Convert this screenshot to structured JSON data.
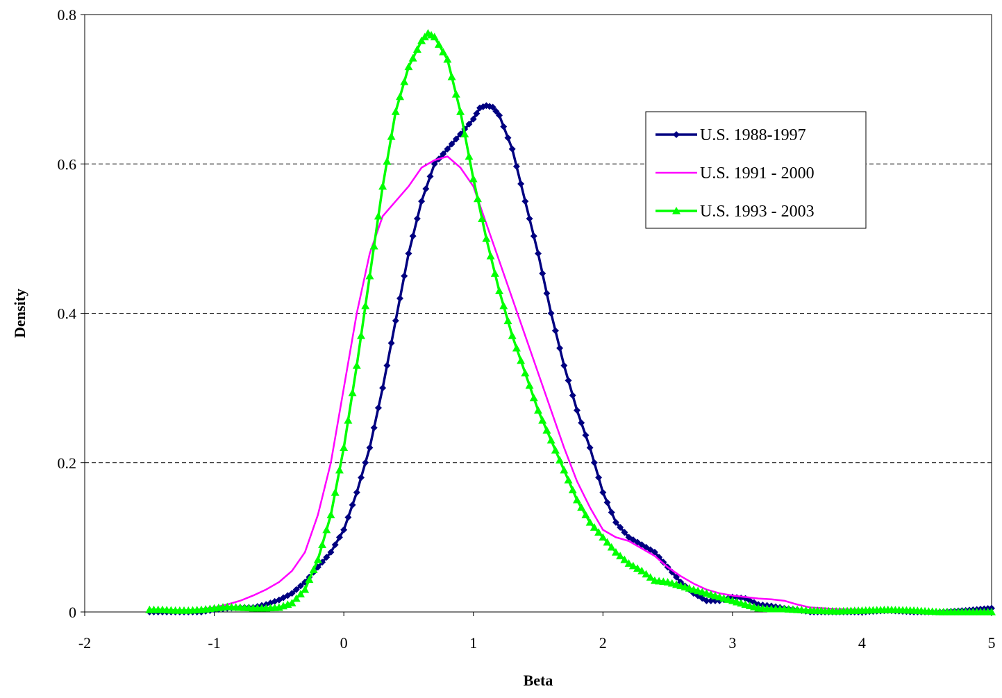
{
  "chart_data": {
    "type": "line",
    "title": "",
    "xlabel": "Beta",
    "ylabel": "Density",
    "xlim": [
      -2,
      5
    ],
    "ylim": [
      0,
      0.8
    ],
    "x_ticks": [
      "-2",
      "-1",
      "0",
      "1",
      "2",
      "3",
      "4",
      "5"
    ],
    "y_ticks": [
      "0",
      "0.2",
      "0.4",
      "0.6",
      "0.8"
    ],
    "grid": "horizontal dashed",
    "legend_position": "top-right",
    "series": [
      {
        "name": "U.S. 1988-1997",
        "color": "#000080",
        "marker": "diamond",
        "points": [
          [
            -1.5,
            0.0
          ],
          [
            -1.4,
            0.0
          ],
          [
            -1.3,
            0.0
          ],
          [
            -1.2,
            0.0
          ],
          [
            -1.1,
            0.0
          ],
          [
            -1.0,
            0.003
          ],
          [
            -0.9,
            0.005
          ],
          [
            -0.8,
            0.006
          ],
          [
            -0.7,
            0.006
          ],
          [
            -0.6,
            0.01
          ],
          [
            -0.5,
            0.016
          ],
          [
            -0.4,
            0.025
          ],
          [
            -0.3,
            0.04
          ],
          [
            -0.2,
            0.06
          ],
          [
            -0.1,
            0.08
          ],
          [
            0.0,
            0.11
          ],
          [
            0.1,
            0.16
          ],
          [
            0.2,
            0.22
          ],
          [
            0.3,
            0.3
          ],
          [
            0.4,
            0.39
          ],
          [
            0.5,
            0.48
          ],
          [
            0.6,
            0.55
          ],
          [
            0.7,
            0.6
          ],
          [
            0.8,
            0.62
          ],
          [
            0.9,
            0.64
          ],
          [
            1.0,
            0.66
          ],
          [
            1.05,
            0.675
          ],
          [
            1.1,
            0.678
          ],
          [
            1.15,
            0.676
          ],
          [
            1.2,
            0.665
          ],
          [
            1.3,
            0.62
          ],
          [
            1.4,
            0.55
          ],
          [
            1.5,
            0.48
          ],
          [
            1.6,
            0.4
          ],
          [
            1.7,
            0.33
          ],
          [
            1.8,
            0.27
          ],
          [
            1.9,
            0.22
          ],
          [
            2.0,
            0.16
          ],
          [
            2.1,
            0.12
          ],
          [
            2.2,
            0.1
          ],
          [
            2.3,
            0.09
          ],
          [
            2.4,
            0.08
          ],
          [
            2.5,
            0.06
          ],
          [
            2.6,
            0.04
          ],
          [
            2.7,
            0.025
          ],
          [
            2.8,
            0.015
          ],
          [
            2.9,
            0.015
          ],
          [
            3.0,
            0.02
          ],
          [
            3.1,
            0.018
          ],
          [
            3.2,
            0.01
          ],
          [
            3.3,
            0.008
          ],
          [
            3.4,
            0.005
          ],
          [
            3.5,
            0.003
          ],
          [
            3.6,
            0.0
          ],
          [
            3.8,
            0.0
          ],
          [
            4.0,
            0.0
          ],
          [
            4.2,
            0.002
          ],
          [
            4.4,
            0.0
          ],
          [
            4.6,
            0.0
          ],
          [
            4.8,
            0.002
          ],
          [
            5.0,
            0.005
          ]
        ]
      },
      {
        "name": "U.S. 1991 - 2000",
        "color": "#ff00ff",
        "marker": "none",
        "points": [
          [
            -1.5,
            0.002
          ],
          [
            -1.4,
            0.002
          ],
          [
            -1.3,
            0.002
          ],
          [
            -1.2,
            0.002
          ],
          [
            -1.1,
            0.004
          ],
          [
            -1.0,
            0.006
          ],
          [
            -0.9,
            0.01
          ],
          [
            -0.8,
            0.015
          ],
          [
            -0.7,
            0.022
          ],
          [
            -0.6,
            0.03
          ],
          [
            -0.5,
            0.04
          ],
          [
            -0.4,
            0.055
          ],
          [
            -0.3,
            0.08
          ],
          [
            -0.2,
            0.13
          ],
          [
            -0.1,
            0.2
          ],
          [
            0.0,
            0.3
          ],
          [
            0.1,
            0.4
          ],
          [
            0.2,
            0.48
          ],
          [
            0.3,
            0.53
          ],
          [
            0.4,
            0.55
          ],
          [
            0.5,
            0.57
          ],
          [
            0.6,
            0.595
          ],
          [
            0.7,
            0.605
          ],
          [
            0.8,
            0.61
          ],
          [
            0.9,
            0.595
          ],
          [
            1.0,
            0.57
          ],
          [
            1.1,
            0.52
          ],
          [
            1.2,
            0.47
          ],
          [
            1.3,
            0.42
          ],
          [
            1.4,
            0.37
          ],
          [
            1.5,
            0.32
          ],
          [
            1.6,
            0.27
          ],
          [
            1.7,
            0.22
          ],
          [
            1.8,
            0.175
          ],
          [
            1.9,
            0.14
          ],
          [
            2.0,
            0.11
          ],
          [
            2.1,
            0.1
          ],
          [
            2.2,
            0.095
          ],
          [
            2.3,
            0.085
          ],
          [
            2.4,
            0.075
          ],
          [
            2.5,
            0.06
          ],
          [
            2.6,
            0.048
          ],
          [
            2.7,
            0.038
          ],
          [
            2.8,
            0.03
          ],
          [
            2.9,
            0.025
          ],
          [
            3.0,
            0.022
          ],
          [
            3.1,
            0.02
          ],
          [
            3.2,
            0.018
          ],
          [
            3.3,
            0.017
          ],
          [
            3.4,
            0.015
          ],
          [
            3.5,
            0.01
          ],
          [
            3.6,
            0.006
          ],
          [
            3.8,
            0.004
          ],
          [
            4.0,
            0.003
          ],
          [
            4.2,
            0.002
          ],
          [
            4.4,
            0.002
          ],
          [
            4.6,
            0.001
          ],
          [
            4.8,
            0.001
          ],
          [
            5.0,
            0.001
          ]
        ]
      },
      {
        "name": "U.S. 1993 - 2003",
        "color": "#00ff00",
        "marker": "triangle",
        "points": [
          [
            -1.5,
            0.003
          ],
          [
            -1.4,
            0.003
          ],
          [
            -1.3,
            0.002
          ],
          [
            -1.2,
            0.002
          ],
          [
            -1.1,
            0.003
          ],
          [
            -1.0,
            0.005
          ],
          [
            -0.9,
            0.007
          ],
          [
            -0.8,
            0.006
          ],
          [
            -0.7,
            0.005
          ],
          [
            -0.6,
            0.005
          ],
          [
            -0.5,
            0.006
          ],
          [
            -0.4,
            0.012
          ],
          [
            -0.3,
            0.03
          ],
          [
            -0.2,
            0.07
          ],
          [
            -0.1,
            0.13
          ],
          [
            0.0,
            0.22
          ],
          [
            0.1,
            0.33
          ],
          [
            0.2,
            0.45
          ],
          [
            0.3,
            0.57
          ],
          [
            0.4,
            0.67
          ],
          [
            0.5,
            0.73
          ],
          [
            0.6,
            0.765
          ],
          [
            0.65,
            0.775
          ],
          [
            0.7,
            0.77
          ],
          [
            0.8,
            0.74
          ],
          [
            0.9,
            0.67
          ],
          [
            1.0,
            0.58
          ],
          [
            1.1,
            0.5
          ],
          [
            1.2,
            0.43
          ],
          [
            1.3,
            0.37
          ],
          [
            1.4,
            0.32
          ],
          [
            1.5,
            0.27
          ],
          [
            1.6,
            0.23
          ],
          [
            1.7,
            0.19
          ],
          [
            1.8,
            0.15
          ],
          [
            1.9,
            0.12
          ],
          [
            2.0,
            0.1
          ],
          [
            2.1,
            0.08
          ],
          [
            2.2,
            0.065
          ],
          [
            2.3,
            0.055
          ],
          [
            2.4,
            0.042
          ],
          [
            2.5,
            0.04
          ],
          [
            2.6,
            0.035
          ],
          [
            2.7,
            0.03
          ],
          [
            2.8,
            0.025
          ],
          [
            2.9,
            0.02
          ],
          [
            3.0,
            0.015
          ],
          [
            3.1,
            0.01
          ],
          [
            3.2,
            0.005
          ],
          [
            3.3,
            0.004
          ],
          [
            3.4,
            0.004
          ],
          [
            3.5,
            0.003
          ],
          [
            3.6,
            0.002
          ],
          [
            3.8,
            0.001
          ],
          [
            4.0,
            0.002
          ],
          [
            4.2,
            0.003
          ],
          [
            4.4,
            0.002
          ],
          [
            4.6,
            0.0
          ],
          [
            4.8,
            0.0
          ],
          [
            5.0,
            0.0
          ]
        ]
      }
    ]
  }
}
